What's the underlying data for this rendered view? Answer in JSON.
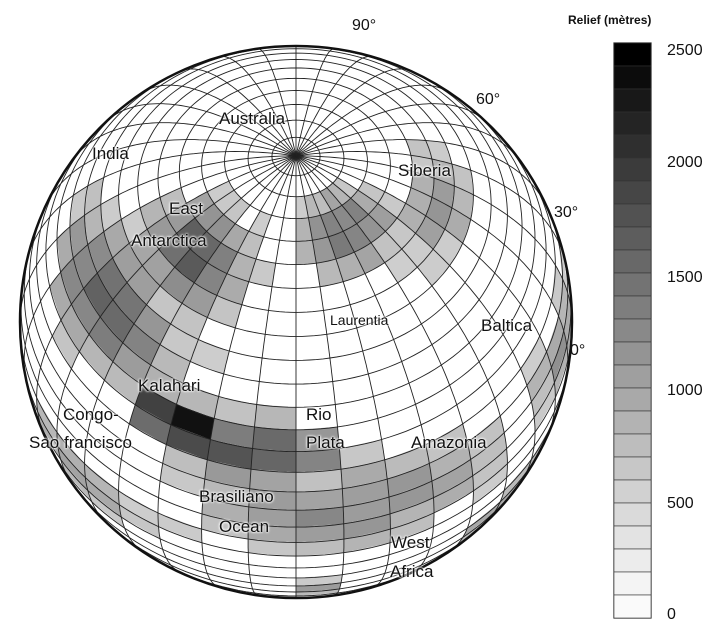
{
  "latitude_labels": {
    "lat90": "90°",
    "lat60": "60°",
    "lat30": "30°",
    "lat0": "0°"
  },
  "regions": {
    "australia": "Australia",
    "india": "India",
    "siberia": "Siberia",
    "east": "East",
    "antarctica": "Antarctica",
    "laurentia": "Laurentia",
    "baltica": "Baltica",
    "kalahari": "Kalahari",
    "congo": "Congo-",
    "sao_francisco": "Sao francisco",
    "rio": "Rio",
    "plata": "Plata",
    "amazonia": "Amazonia",
    "brasiliano": "Brasiliano",
    "ocean": "Ocean",
    "west": "West",
    "africa": "Africa"
  },
  "legend": {
    "title": "Relief (mètres)",
    "ticks": [
      "2500",
      "2000",
      "1500",
      "1000",
      "500",
      "0"
    ],
    "range": [
      0,
      2500
    ],
    "steps": 25
  },
  "colors": {
    "ink": "#111111",
    "grid": "#222222",
    "background": "#ffffff"
  }
}
